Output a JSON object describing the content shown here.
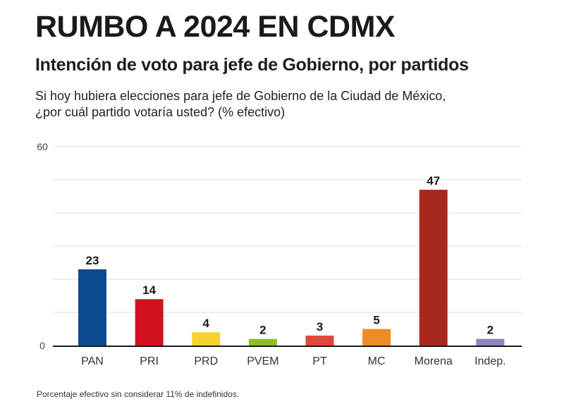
{
  "header": {
    "title": "RUMBO A 2024 EN CDMX",
    "subtitle": "Intención de voto para jefe de Gobierno, por partidos",
    "question_line1": "Si hoy hubiera elecciones para jefe de Gobierno de la Ciudad de México,",
    "question_line2": "¿por cuál partido votaría usted? (% efectivo)"
  },
  "footnote": "Porcentaje efectivo sin considerar 11% de indefinidos.",
  "chart_data": {
    "type": "bar",
    "title": "Intención de voto para jefe de Gobierno, por partidos",
    "xlabel": "",
    "ylabel": "% efectivo",
    "ylim": [
      0,
      60
    ],
    "yticks_labeled": [
      "0",
      "60"
    ],
    "grid_step": 10,
    "grid": true,
    "categories": [
      "PAN",
      "PRI",
      "PRD",
      "PVEM",
      "PT",
      "MC",
      "Morena",
      "Indep."
    ],
    "values": [
      23,
      14,
      4,
      2,
      3,
      5,
      47,
      2
    ],
    "colors": [
      "#0d4a8f",
      "#d0121e",
      "#f5d32a",
      "#8dbd2b",
      "#e2473b",
      "#ee8c25",
      "#a8281e",
      "#8e84c2"
    ]
  }
}
